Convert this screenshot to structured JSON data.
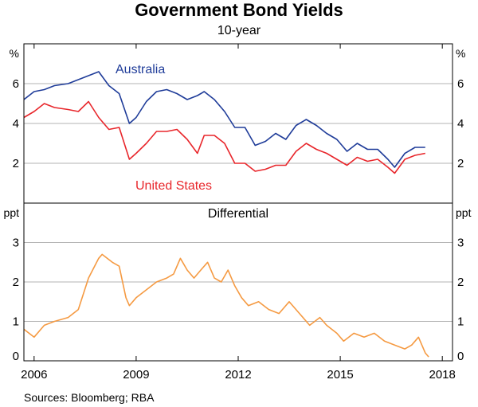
{
  "title": "Government Bond Yields",
  "subtitle": "10-year",
  "source": "Sources: Bloomberg; RBA",
  "colors": {
    "australia": "#1f3c99",
    "us": "#e8262b",
    "differential": "#f59a42",
    "grid": "#b3b3b3"
  },
  "chart_data": [
    {
      "type": "line",
      "panel": "top",
      "unit_label_left": "%",
      "unit_label_right": "%",
      "ylim": [
        0,
        8
      ],
      "yticks": [
        2,
        4,
        6
      ],
      "xlim": [
        2005.7,
        2018.3
      ],
      "series": [
        {
          "name": "Australia",
          "color": "#1f3c99",
          "x": [
            2005.7,
            2006.0,
            2006.3,
            2006.6,
            2007.0,
            2007.3,
            2007.6,
            2007.9,
            2008.2,
            2008.5,
            2008.8,
            2009.0,
            2009.3,
            2009.6,
            2009.9,
            2010.2,
            2010.5,
            2010.8,
            2011.0,
            2011.3,
            2011.6,
            2011.9,
            2012.2,
            2012.5,
            2012.8,
            2013.1,
            2013.4,
            2013.7,
            2014.0,
            2014.3,
            2014.6,
            2014.9,
            2015.2,
            2015.5,
            2015.8,
            2016.1,
            2016.4,
            2016.6,
            2016.9,
            2017.2,
            2017.5
          ],
          "y": [
            5.2,
            5.6,
            5.7,
            5.9,
            6.0,
            6.2,
            6.4,
            6.6,
            5.9,
            5.5,
            4.0,
            4.3,
            5.1,
            5.6,
            5.7,
            5.5,
            5.2,
            5.4,
            5.6,
            5.2,
            4.6,
            3.8,
            3.8,
            2.9,
            3.1,
            3.5,
            3.2,
            3.9,
            4.2,
            3.9,
            3.5,
            3.2,
            2.6,
            3.0,
            2.7,
            2.7,
            2.2,
            1.8,
            2.5,
            2.8,
            2.8
          ]
        },
        {
          "name": "United States",
          "color": "#e8262b",
          "x": [
            2005.7,
            2006.0,
            2006.3,
            2006.6,
            2007.0,
            2007.3,
            2007.6,
            2007.9,
            2008.2,
            2008.5,
            2008.8,
            2009.0,
            2009.3,
            2009.6,
            2009.9,
            2010.2,
            2010.5,
            2010.8,
            2011.0,
            2011.3,
            2011.6,
            2011.9,
            2012.2,
            2012.5,
            2012.8,
            2013.1,
            2013.4,
            2013.7,
            2014.0,
            2014.3,
            2014.6,
            2014.9,
            2015.2,
            2015.5,
            2015.8,
            2016.1,
            2016.4,
            2016.6,
            2016.9,
            2017.2,
            2017.5
          ],
          "y": [
            4.3,
            4.6,
            5.0,
            4.8,
            4.7,
            4.6,
            5.1,
            4.3,
            3.7,
            3.8,
            2.2,
            2.5,
            3.0,
            3.6,
            3.6,
            3.7,
            3.2,
            2.5,
            3.4,
            3.4,
            3.0,
            2.0,
            2.0,
            1.6,
            1.7,
            1.9,
            1.9,
            2.6,
            3.0,
            2.7,
            2.5,
            2.2,
            1.9,
            2.3,
            2.1,
            2.2,
            1.8,
            1.5,
            2.2,
            2.4,
            2.5
          ]
        }
      ],
      "annotations": [
        "Australia",
        "United States"
      ]
    },
    {
      "type": "line",
      "panel": "bottom",
      "title": "Differential",
      "unit_label_left": "ppt",
      "unit_label_right": "ppt",
      "ylim": [
        0,
        4
      ],
      "yticks": [
        0,
        1,
        2,
        3
      ],
      "xlim": [
        2005.7,
        2018.3
      ],
      "xticks": [
        2006,
        2009,
        2012,
        2015,
        2018
      ],
      "xticklabels": [
        "2006",
        "2009",
        "2012",
        "2015",
        "2018"
      ],
      "series": [
        {
          "name": "Differential",
          "color": "#f59a42",
          "x": [
            2005.7,
            2006.0,
            2006.3,
            2006.6,
            2007.0,
            2007.3,
            2007.6,
            2007.9,
            2008.0,
            2008.3,
            2008.5,
            2008.7,
            2008.8,
            2009.0,
            2009.3,
            2009.6,
            2009.9,
            2010.1,
            2010.3,
            2010.5,
            2010.7,
            2010.9,
            2011.1,
            2011.3,
            2011.5,
            2011.7,
            2011.9,
            2012.1,
            2012.3,
            2012.6,
            2012.9,
            2013.2,
            2013.5,
            2013.8,
            2014.1,
            2014.4,
            2014.6,
            2014.9,
            2015.1,
            2015.4,
            2015.7,
            2016.0,
            2016.3,
            2016.6,
            2016.9,
            2017.1,
            2017.3,
            2017.5,
            2017.6
          ],
          "y": [
            0.8,
            0.6,
            0.9,
            1.0,
            1.1,
            1.3,
            2.1,
            2.6,
            2.7,
            2.5,
            2.4,
            1.6,
            1.4,
            1.6,
            1.8,
            2.0,
            2.1,
            2.2,
            2.6,
            2.3,
            2.1,
            2.3,
            2.5,
            2.1,
            2.0,
            2.3,
            1.9,
            1.6,
            1.4,
            1.5,
            1.3,
            1.2,
            1.5,
            1.2,
            0.9,
            1.1,
            0.9,
            0.7,
            0.5,
            0.7,
            0.6,
            0.7,
            0.5,
            0.4,
            0.3,
            0.4,
            0.6,
            0.2,
            0.1
          ]
        }
      ]
    }
  ]
}
